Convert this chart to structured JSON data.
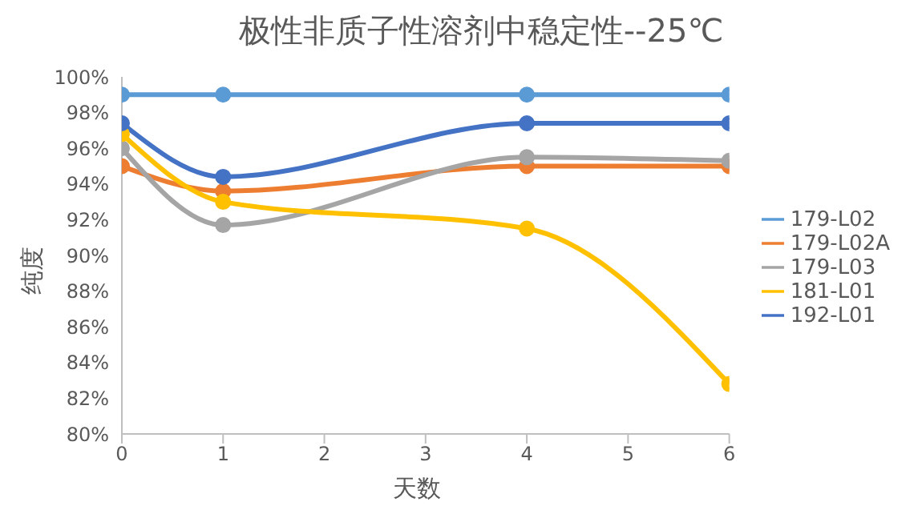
{
  "chart_data": {
    "type": "line",
    "title": "极性非质子性溶剂中稳定性--25℃",
    "xlabel": "天数",
    "ylabel": "纯度",
    "x": [
      0,
      1,
      4,
      6
    ],
    "xlim": [
      0,
      6
    ],
    "xticks": [
      0,
      1,
      2,
      3,
      4,
      5,
      6
    ],
    "ylim": [
      80,
      100
    ],
    "yticks": [
      {
        "value": 80,
        "label": "80%"
      },
      {
        "value": 82,
        "label": "82%"
      },
      {
        "value": 84,
        "label": "84%"
      },
      {
        "value": 86,
        "label": "86%"
      },
      {
        "value": 88,
        "label": "88%"
      },
      {
        "value": 90,
        "label": "90%"
      },
      {
        "value": 92,
        "label": "92%"
      },
      {
        "value": 94,
        "label": "94%"
      },
      {
        "value": 96,
        "label": "96%"
      },
      {
        "value": 98,
        "label": "98%"
      },
      {
        "value": 100,
        "label": "100%"
      }
    ],
    "grid": false,
    "legend": "right",
    "marker": "circle",
    "line_style": "solid",
    "series": [
      {
        "name": "179-L02",
        "color": "#5b9bd5",
        "values": [
          99,
          99,
          99,
          99
        ]
      },
      {
        "name": "179-L02A",
        "color": "#ed7d31",
        "values": [
          95,
          93.6,
          95,
          95
        ]
      },
      {
        "name": "179-L03",
        "color": "#a5a5a5",
        "values": [
          96,
          91.7,
          95.5,
          95.3
        ]
      },
      {
        "name": "181-L01",
        "color": "#ffc000",
        "values": [
          96.8,
          93,
          91.5,
          82.8
        ]
      },
      {
        "name": "192-L01",
        "color": "#4472c4",
        "values": [
          97.4,
          94.4,
          97.4,
          97.4
        ]
      }
    ]
  }
}
